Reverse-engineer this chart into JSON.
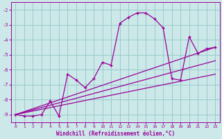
{
  "xlabel": "Windchill (Refroidissement éolien,°C)",
  "background_color": "#cce8e8",
  "line_color": "#990099",
  "grid_color": "#99cccc",
  "xlim": [
    -0.5,
    23.5
  ],
  "ylim": [
    -9.5,
    -1.5
  ],
  "yticks": [
    -9,
    -8,
    -7,
    -6,
    -5,
    -4,
    -3,
    -2
  ],
  "xticks": [
    0,
    1,
    2,
    3,
    4,
    5,
    6,
    7,
    8,
    9,
    10,
    11,
    12,
    13,
    14,
    15,
    16,
    17,
    18,
    19,
    20,
    21,
    22,
    23
  ],
  "curve1_x": [
    0,
    1,
    2,
    3,
    4,
    5,
    6,
    7,
    8,
    9,
    10,
    11,
    12,
    13,
    14,
    15,
    16,
    17,
    18,
    19,
    20,
    21,
    22,
    23
  ],
  "curve1_y": [
    -9.0,
    -9.1,
    -9.1,
    -9.0,
    -8.1,
    -9.1,
    -6.3,
    -6.7,
    -7.2,
    -6.6,
    -5.5,
    -5.7,
    -2.9,
    -2.5,
    -2.2,
    -2.2,
    -2.6,
    -3.2,
    -6.6,
    -6.7,
    -3.8,
    -4.9,
    -4.6,
    -4.5
  ],
  "line1_x": [
    0,
    23
  ],
  "line1_y": [
    -9.0,
    -4.5
  ],
  "line2_x": [
    0,
    23
  ],
  "line2_y": [
    -9.0,
    -6.3
  ],
  "line3_x": [
    0,
    23
  ],
  "line3_y": [
    -9.0,
    -5.4
  ]
}
